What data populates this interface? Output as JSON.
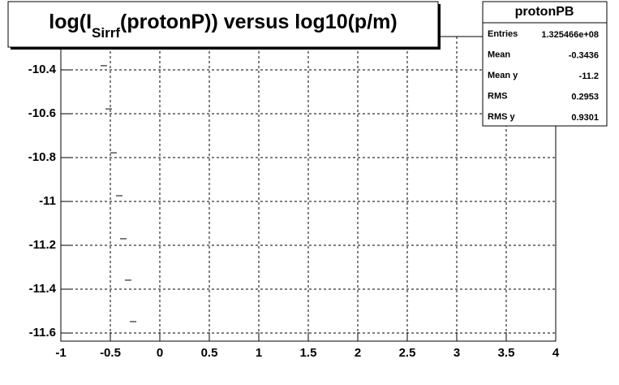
{
  "chart_data": {
    "type": "scatter",
    "title_parts": [
      "log(I",
      "Sirrf",
      "(protonP)) versus log10(p/m)"
    ],
    "x": [
      -0.566,
      -0.516,
      -0.467,
      -0.41,
      -0.369,
      -0.32,
      -0.27
    ],
    "values": [
      -10.381,
      -10.578,
      -10.778,
      -10.974,
      -11.17,
      -11.359,
      -11.548
    ],
    "color": "#000000",
    "xlim": [
      -1,
      4
    ],
    "xticks": [
      -1,
      -0.5,
      0,
      0.5,
      1,
      1.5,
      2,
      2.5,
      3,
      3.5,
      4
    ],
    "ylim": [
      -11.637,
      -10.248
    ],
    "yticks": [
      -11.6,
      -11.4,
      -11.2,
      -11,
      -10.8,
      -10.6,
      -10.4
    ],
    "grid": true,
    "stats": {
      "title": "protonPB",
      "rows": [
        [
          "Entries",
          "1.325466e+08"
        ],
        [
          "Mean",
          "-0.3436"
        ],
        [
          "Mean y",
          "-11.2"
        ],
        [
          "RMS",
          "0.2953"
        ],
        [
          "RMS y",
          "0.9301"
        ]
      ]
    }
  }
}
